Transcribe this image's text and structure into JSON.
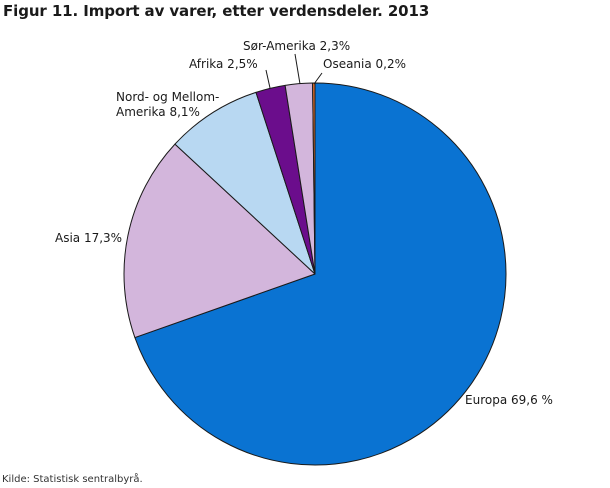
{
  "chart_data": {
    "type": "pie",
    "title": "Figur 11. Import av varer, etter verdensdeler. 2013",
    "start": "12 o'clock",
    "direction": "clockwise",
    "slices": [
      {
        "label": "Europa 69,6 %",
        "value": 69.6,
        "color": "#0a73d2"
      },
      {
        "label": "Asia 17,3%",
        "value": 17.3,
        "color": "#d3b6dc"
      },
      {
        "label_lines": [
          "Nord- og Mellom-",
          "Amerika 8,1%"
        ],
        "value": 8.1,
        "color": "#b8d8f2"
      },
      {
        "label": "Afrika 2,5%",
        "value": 2.5,
        "color": "#6b0d8c"
      },
      {
        "label": "Sør-Amerika 2,3%",
        "value": 2.3,
        "color": "#d3b6dc"
      },
      {
        "label": "Oseania 0,2%",
        "value": 0.2,
        "color": "#e8702a"
      }
    ]
  },
  "source": "Kilde: Statistisk sentralbyrå."
}
